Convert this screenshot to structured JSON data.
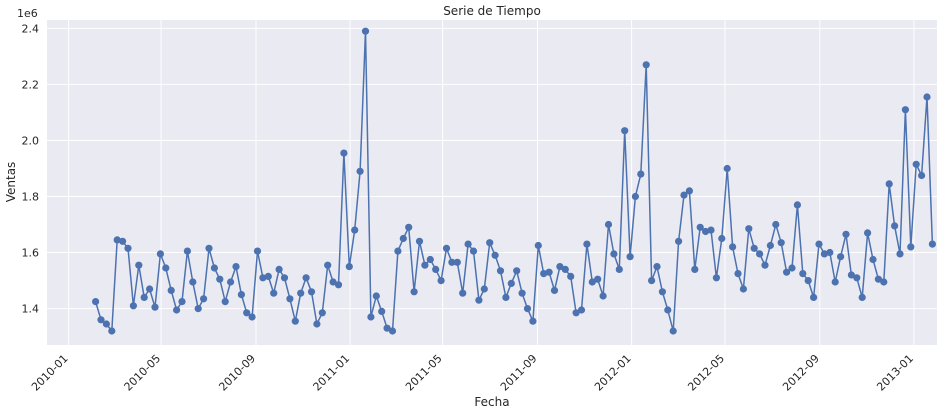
{
  "chart_data": {
    "type": "line",
    "title": "Serie de Tiempo",
    "xlabel": "Fecha",
    "ylabel": "Ventas",
    "y_offset_label": "1e6",
    "y_multiplier": 1000000,
    "ylim": [
      1.27,
      2.43
    ],
    "xlim": [
      "2009-12-04",
      "2013-01-31"
    ],
    "grid": true,
    "x_ticks": [
      {
        "date": "2010-01-01",
        "label": "2010-01"
      },
      {
        "date": "2010-05-01",
        "label": "2010-05"
      },
      {
        "date": "2010-09-01",
        "label": "2010-09"
      },
      {
        "date": "2011-01-01",
        "label": "2011-01"
      },
      {
        "date": "2011-05-01",
        "label": "2011-05"
      },
      {
        "date": "2011-09-01",
        "label": "2011-09"
      },
      {
        "date": "2012-01-01",
        "label": "2012-01"
      },
      {
        "date": "2012-05-01",
        "label": "2012-05"
      },
      {
        "date": "2012-09-01",
        "label": "2012-09"
      },
      {
        "date": "2013-01-01",
        "label": "2013-01"
      }
    ],
    "y_ticks": [
      {
        "value": 1.4,
        "label": "1.4"
      },
      {
        "value": 1.6,
        "label": "1.6"
      },
      {
        "value": 1.8,
        "label": "1.8"
      },
      {
        "value": 2.0,
        "label": "2.0"
      },
      {
        "value": 2.2,
        "label": "2.2"
      },
      {
        "value": 2.4,
        "label": "2.4"
      }
    ],
    "series": [
      {
        "color": "#4c72b0",
        "x_start": "2010-02-05",
        "x_step_days": 7,
        "values": [
          1.425,
          1.36,
          1.345,
          1.32,
          1.645,
          1.64,
          1.615,
          1.41,
          1.555,
          1.44,
          1.47,
          1.405,
          1.595,
          1.545,
          1.465,
          1.395,
          1.425,
          1.605,
          1.495,
          1.4,
          1.435,
          1.615,
          1.545,
          1.505,
          1.425,
          1.495,
          1.55,
          1.45,
          1.385,
          1.37,
          1.605,
          1.51,
          1.515,
          1.455,
          1.54,
          1.51,
          1.435,
          1.355,
          1.455,
          1.51,
          1.46,
          1.345,
          1.385,
          1.555,
          1.495,
          1.485,
          1.955,
          1.55,
          1.68,
          1.89,
          2.39,
          1.37,
          1.445,
          1.39,
          1.33,
          1.32,
          1.605,
          1.65,
          1.69,
          1.46,
          1.64,
          1.555,
          1.575,
          1.54,
          1.5,
          1.615,
          1.565,
          1.565,
          1.455,
          1.63,
          1.605,
          1.43,
          1.47,
          1.635,
          1.59,
          1.535,
          1.44,
          1.49,
          1.535,
          1.455,
          1.4,
          1.355,
          1.625,
          1.525,
          1.53,
          1.465,
          1.55,
          1.54,
          1.515,
          1.385,
          1.395,
          1.63,
          1.495,
          1.505,
          1.445,
          1.7,
          1.595,
          1.54,
          2.035,
          1.585,
          1.8,
          1.88,
          2.27,
          1.5,
          1.55,
          1.46,
          1.395,
          1.32,
          1.64,
          1.805,
          1.82,
          1.54,
          1.69,
          1.675,
          1.68,
          1.51,
          1.65,
          1.9,
          1.62,
          1.525,
          1.47,
          1.685,
          1.615,
          1.595,
          1.555,
          1.625,
          1.7,
          1.635,
          1.53,
          1.545,
          1.77,
          1.525,
          1.5,
          1.44,
          1.63,
          1.595,
          1.6,
          1.495,
          1.585,
          1.665,
          1.52,
          1.51,
          1.44,
          1.67,
          1.575,
          1.505,
          1.495,
          1.845,
          1.695,
          1.595,
          2.11,
          1.62,
          1.915,
          1.875,
          2.155,
          1.63
        ]
      }
    ]
  }
}
